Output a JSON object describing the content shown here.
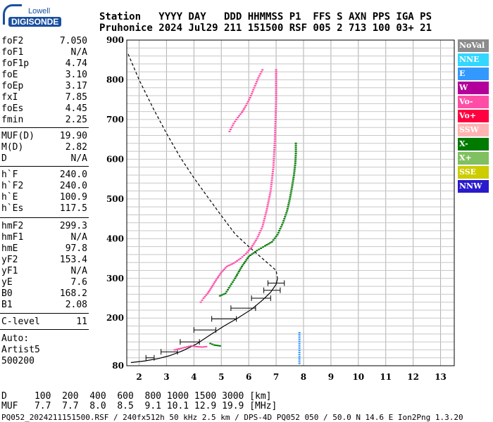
{
  "logo": {
    "top": "Lowell",
    "main": "DIGISONDE"
  },
  "header": {
    "line1": "Station   YYYY DAY   DDD HHMMSS P1  FFS S AXN PPS IGA PS",
    "line2": "Pruhonice 2024 Jul29 211 151500 RSF 005 2 713 100 03+ 21"
  },
  "params": [
    {
      "name": "foF2",
      "value": "7.050"
    },
    {
      "name": "foF1",
      "value": "N/A"
    },
    {
      "name": "foF1p",
      "value": "4.74"
    },
    {
      "name": "foE",
      "value": "3.10"
    },
    {
      "name": "foEp",
      "value": "3.17"
    },
    {
      "name": "fxI",
      "value": "7.85"
    },
    {
      "name": "foEs",
      "value": "4.45"
    },
    {
      "name": "fmin",
      "value": "2.25"
    },
    {
      "name": "MUF(D)",
      "value": "19.90"
    },
    {
      "name": "M(D)",
      "value": "2.82"
    },
    {
      "name": "D",
      "value": "N/A"
    },
    {
      "name": "h`F",
      "value": "240.0"
    },
    {
      "name": "h`F2",
      "value": "240.0"
    },
    {
      "name": "h`E",
      "value": "100.9"
    },
    {
      "name": "h`Es",
      "value": "117.5"
    },
    {
      "name": "hmF2",
      "value": "299.3"
    },
    {
      "name": "hmF1",
      "value": "N/A"
    },
    {
      "name": "hmE",
      "value": "97.8"
    },
    {
      "name": "yF2",
      "value": "153.4"
    },
    {
      "name": "yF1",
      "value": "N/A"
    },
    {
      "name": "yE",
      "value": "7.6"
    },
    {
      "name": "B0",
      "value": "168.2"
    },
    {
      "name": "B1",
      "value": "2.08"
    },
    {
      "name": "C-level",
      "value": "11"
    }
  ],
  "auto": {
    "label": "Auto:",
    "artist": "Artist5",
    "code": "500200"
  },
  "muf_table": {
    "row1": "D     100  200  400  600  800 1000 1500 3000 [km]",
    "row2": "MUF   7.7  7.7  8.0  8.5  9.1 10.1 12.9 19.9 [MHz]"
  },
  "footer": "PQ052_2024211151500.RSF / 240fx512h 50 kHz 2.5 km / DPS-4D PQ052 050 / 50.0 N 14.6 E Ion2Png 1.3.20",
  "legend": [
    {
      "label": "NoVal",
      "color": "#8c8c8c"
    },
    {
      "label": "NNE",
      "color": "#33d6ff"
    },
    {
      "label": "E",
      "color": "#3399ff"
    },
    {
      "label": "W",
      "color": "#b3009a"
    },
    {
      "label": "Vo-",
      "color": "#ff4da6"
    },
    {
      "label": "Vo+",
      "color": "#ff0040"
    },
    {
      "label": "SSW",
      "color": "#ffb3b3"
    },
    {
      "label": "X-",
      "color": "#007a00"
    },
    {
      "label": "X+",
      "color": "#80c060"
    },
    {
      "label": "SSE",
      "color": "#cccc00"
    },
    {
      "label": "NNW",
      "color": "#2a1acc"
    }
  ],
  "chart_data": {
    "type": "scatter",
    "x_ticks": [
      2,
      3,
      4,
      5,
      6,
      7,
      8,
      9,
      10,
      11,
      12,
      13
    ],
    "y_ticks": [
      80,
      200,
      300,
      400,
      500,
      600,
      700,
      800,
      900
    ],
    "xlim": [
      1.55,
      13.5
    ],
    "ylim": [
      80,
      900
    ],
    "grid": true,
    "series": [
      {
        "name": "Vo-",
        "color": "#ff4da6",
        "x": [
          4.25,
          4.35,
          4.5,
          4.65,
          4.8,
          5.0,
          5.2,
          5.45,
          5.7,
          5.9,
          6.1,
          6.3,
          6.5,
          6.65,
          6.8,
          6.9,
          6.95,
          6.98,
          7.0,
          7.0,
          7.0,
          7.0
        ],
        "y": [
          240,
          250,
          262,
          278,
          295,
          315,
          330,
          338,
          350,
          362,
          378,
          400,
          430,
          470,
          520,
          580,
          640,
          700,
          750,
          790,
          815,
          825
        ]
      },
      {
        "name": "Vo-",
        "color": "#ff4da6",
        "x": [
          5.3,
          5.45,
          5.6,
          5.75,
          5.9,
          6.05,
          6.2,
          6.35,
          6.5
        ],
        "y": [
          670,
          690,
          705,
          718,
          735,
          755,
          780,
          805,
          825
        ]
      },
      {
        "name": "Vo-",
        "color": "#ff4da6",
        "x": [
          3.3,
          3.6,
          3.9,
          4.1,
          4.3,
          4.45
        ],
        "y": [
          120,
          125,
          130,
          128,
          127,
          128
        ]
      },
      {
        "name": "X-",
        "color": "#007a00",
        "x": [
          4.95,
          5.15,
          5.5,
          5.75,
          6.0,
          6.3,
          6.6,
          6.85,
          7.05,
          7.25,
          7.4,
          7.5,
          7.58,
          7.65,
          7.7,
          7.72,
          7.72
        ],
        "y": [
          256,
          262,
          300,
          330,
          355,
          370,
          382,
          392,
          410,
          440,
          470,
          500,
          530,
          560,
          590,
          615,
          640
        ]
      },
      {
        "name": "X-",
        "color": "#007a00",
        "x": [
          4.6,
          4.75,
          4.95
        ],
        "y": [
          136,
          132,
          130
        ]
      },
      {
        "name": "E",
        "color": "#3399ff",
        "x": [
          7.85,
          7.85
        ],
        "y": [
          86,
          163
        ]
      }
    ],
    "profile": {
      "x": [
        1.7,
        2.2,
        2.7,
        3.1,
        3.6,
        4.1,
        4.6,
        5.1,
        5.6,
        6.1,
        6.5,
        6.8,
        7.0,
        7.05
      ],
      "y": [
        88,
        92,
        98,
        105,
        118,
        135,
        158,
        180,
        200,
        222,
        245,
        265,
        285,
        299.3
      ]
    },
    "model_curve": {
      "x": [
        1.6,
        2.0,
        2.5,
        3.0,
        3.5,
        4.0,
        4.5,
        5.0,
        5.5,
        6.0,
        6.5,
        7.0,
        7.05
      ],
      "y": [
        865,
        800,
        730,
        665,
        605,
        553,
        505,
        458,
        412,
        380,
        350,
        320,
        299.3
      ]
    },
    "error_bars": [
      {
        "y": 100,
        "x": 2.4,
        "xerr": 0.15
      },
      {
        "y": 115,
        "x": 3.1,
        "xerr": 0.3
      },
      {
        "y": 140,
        "x": 3.85,
        "xerr": 0.35
      },
      {
        "y": 170,
        "x": 4.4,
        "xerr": 0.4
      },
      {
        "y": 198,
        "x": 5.1,
        "xerr": 0.45
      },
      {
        "y": 225,
        "x": 5.8,
        "xerr": 0.45
      },
      {
        "y": 250,
        "x": 6.45,
        "xerr": 0.35
      },
      {
        "y": 270,
        "x": 6.85,
        "xerr": 0.3
      },
      {
        "y": 288,
        "x": 7.0,
        "xerr": 0.3
      }
    ]
  }
}
